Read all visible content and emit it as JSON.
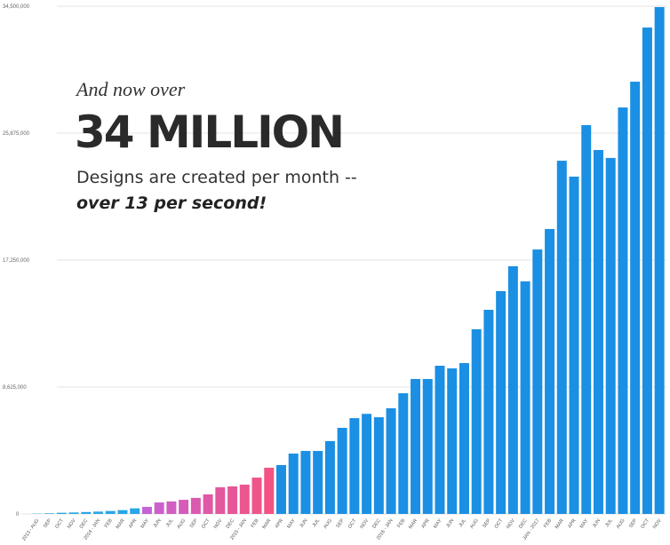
{
  "chart_data": {
    "type": "bar",
    "annotations": [
      "And now over",
      "34 MILLION",
      "Designs are created per month --",
      "over 13 per second!"
    ],
    "categories": [
      "2013 - AUG",
      "SEP",
      "OCT",
      "NOV",
      "DEC",
      "2014 - JAN",
      "FEB",
      "MAR",
      "APR",
      "MAY",
      "JUN",
      "JUL",
      "AUG",
      "SEP",
      "OCT",
      "NOV",
      "DEC",
      "2015 - JAN",
      "FEB",
      "MAR",
      "APR",
      "MAY",
      "JUN",
      "JUL",
      "AUG",
      "SEP",
      "OCT",
      "NOV",
      "DEC",
      "2016 - JAN",
      "FEB",
      "MAR",
      "APR",
      "MAY",
      "JUN",
      "JUL",
      "AUG",
      "SEP",
      "OCT",
      "NOV",
      "DEC",
      "JAN - 2017",
      "FEB",
      "MAR",
      "APR",
      "MAY",
      "JUN",
      "JUL",
      "AUG",
      "SEP",
      "OCT",
      "NOV"
    ],
    "values": [
      20000,
      40000,
      80000,
      100000,
      130000,
      160000,
      200000,
      260000,
      380000,
      480000,
      780000,
      850000,
      960000,
      1090000,
      1330000,
      1810000,
      1870000,
      1990000,
      2470000,
      3140000,
      3320000,
      4100000,
      4280000,
      4280000,
      4950000,
      5850000,
      6510000,
      6800000,
      6570000,
      7180000,
      8200000,
      9170000,
      9170000,
      10070000,
      9890000,
      10250000,
      12550000,
      13870000,
      15140000,
      16830000,
      15800000,
      17970000,
      19360000,
      24000000,
      22920000,
      26420000,
      24730000,
      24190000,
      27620000,
      29370000,
      33050000,
      34440000
    ],
    "colors": [
      "#2aa6e6",
      "#2aa6e6",
      "#2aa6e6",
      "#2aa6e6",
      "#2aa6e6",
      "#2aa6e6",
      "#2aa6e6",
      "#2aa6e6",
      "#2aa6e6",
      "#c562d6",
      "#cb60cc",
      "#d15ec2",
      "#d65cb8",
      "#da5aae",
      "#df59a6",
      "#e3579e",
      "#e75697",
      "#eb5590",
      "#ef548a",
      "#f35384",
      "#1a8fe3",
      "#1a8fe3",
      "#1a8fe3",
      "#1a8fe3",
      "#1a8fe3",
      "#1a8fe3",
      "#1a8fe3",
      "#1a8fe3",
      "#1a8fe3",
      "#1a8fe3",
      "#1a8fe3",
      "#1a8fe3",
      "#1a8fe3",
      "#1a8fe3",
      "#1a8fe3",
      "#1a8fe3",
      "#1a8fe3",
      "#1a8fe3",
      "#1a8fe3",
      "#1a8fe3",
      "#1a8fe3",
      "#1a8fe3",
      "#1a8fe3",
      "#1a8fe3",
      "#1a8fe3",
      "#1a8fe3",
      "#1a8fe3",
      "#1a8fe3",
      "#1a8fe3",
      "#1a8fe3",
      "#1a8fe3",
      "#1a8fe3"
    ],
    "ylim": [
      0,
      34500000
    ],
    "yticks": [
      0,
      {
        "value": 8625000,
        "label": "8,625,000"
      },
      {
        "value": 17250000,
        "label": "17,250,000"
      },
      {
        "value": 25875000,
        "label": "25,875,000"
      },
      {
        "value": 34500000,
        "label": "34,500,000"
      }
    ],
    "grid": true
  }
}
